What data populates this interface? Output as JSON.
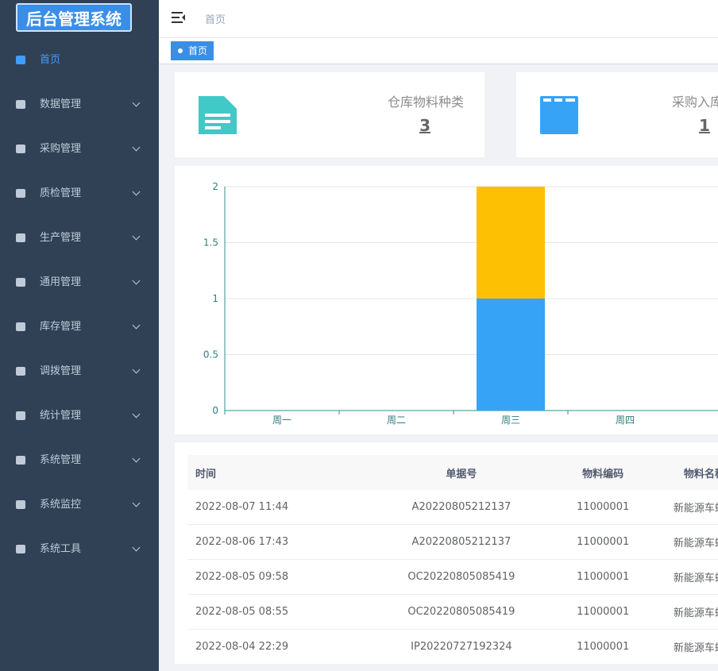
{
  "logo": "后台管理系统",
  "menu": [
    "首页",
    "数据管理",
    "采购管理",
    "质检管理",
    "生产管理",
    "通用管理",
    "库存管理",
    "调拨管理",
    "统计管理",
    "系统管理",
    "系统监控",
    "系统工具"
  ],
  "header": {
    "breadcrumb": "首页",
    "tag": "首页"
  },
  "cards": [
    {
      "label": "仓库物料种类",
      "value": "3"
    },
    {
      "label": "采购入库",
      "value": "1"
    }
  ],
  "chart_data": {
    "type": "bar",
    "stacked": true,
    "categories": [
      "周一",
      "周二",
      "周三",
      "周四"
    ],
    "series": [
      {
        "color": "#36a3f7",
        "values": [
          0,
          0,
          1,
          0
        ]
      },
      {
        "color": "#fec003",
        "values": [
          0,
          0,
          1,
          0
        ]
      }
    ],
    "ylim": [
      0,
      2
    ],
    "yticks": [
      0,
      0.5,
      1,
      1.5,
      2
    ],
    "grid": true
  },
  "table": {
    "headers": [
      "时间",
      "单据号",
      "物料编码",
      "物料名称"
    ],
    "rows": [
      [
        "2022-08-07 11:44",
        "A20220805212137",
        "11000001",
        "新能源车螺丝"
      ],
      [
        "2022-08-06 17:43",
        "A20220805212137",
        "11000001",
        "新能源车螺丝"
      ],
      [
        "2022-08-05 09:58",
        "OC20220805085419",
        "11000001",
        "新能源车螺丝"
      ],
      [
        "2022-08-05 08:55",
        "OC20220805085419",
        "11000001",
        "新能源车螺丝"
      ],
      [
        "2022-08-04 22:29",
        "IP20220727192324",
        "11000001",
        "新能源车螺丝"
      ]
    ]
  }
}
